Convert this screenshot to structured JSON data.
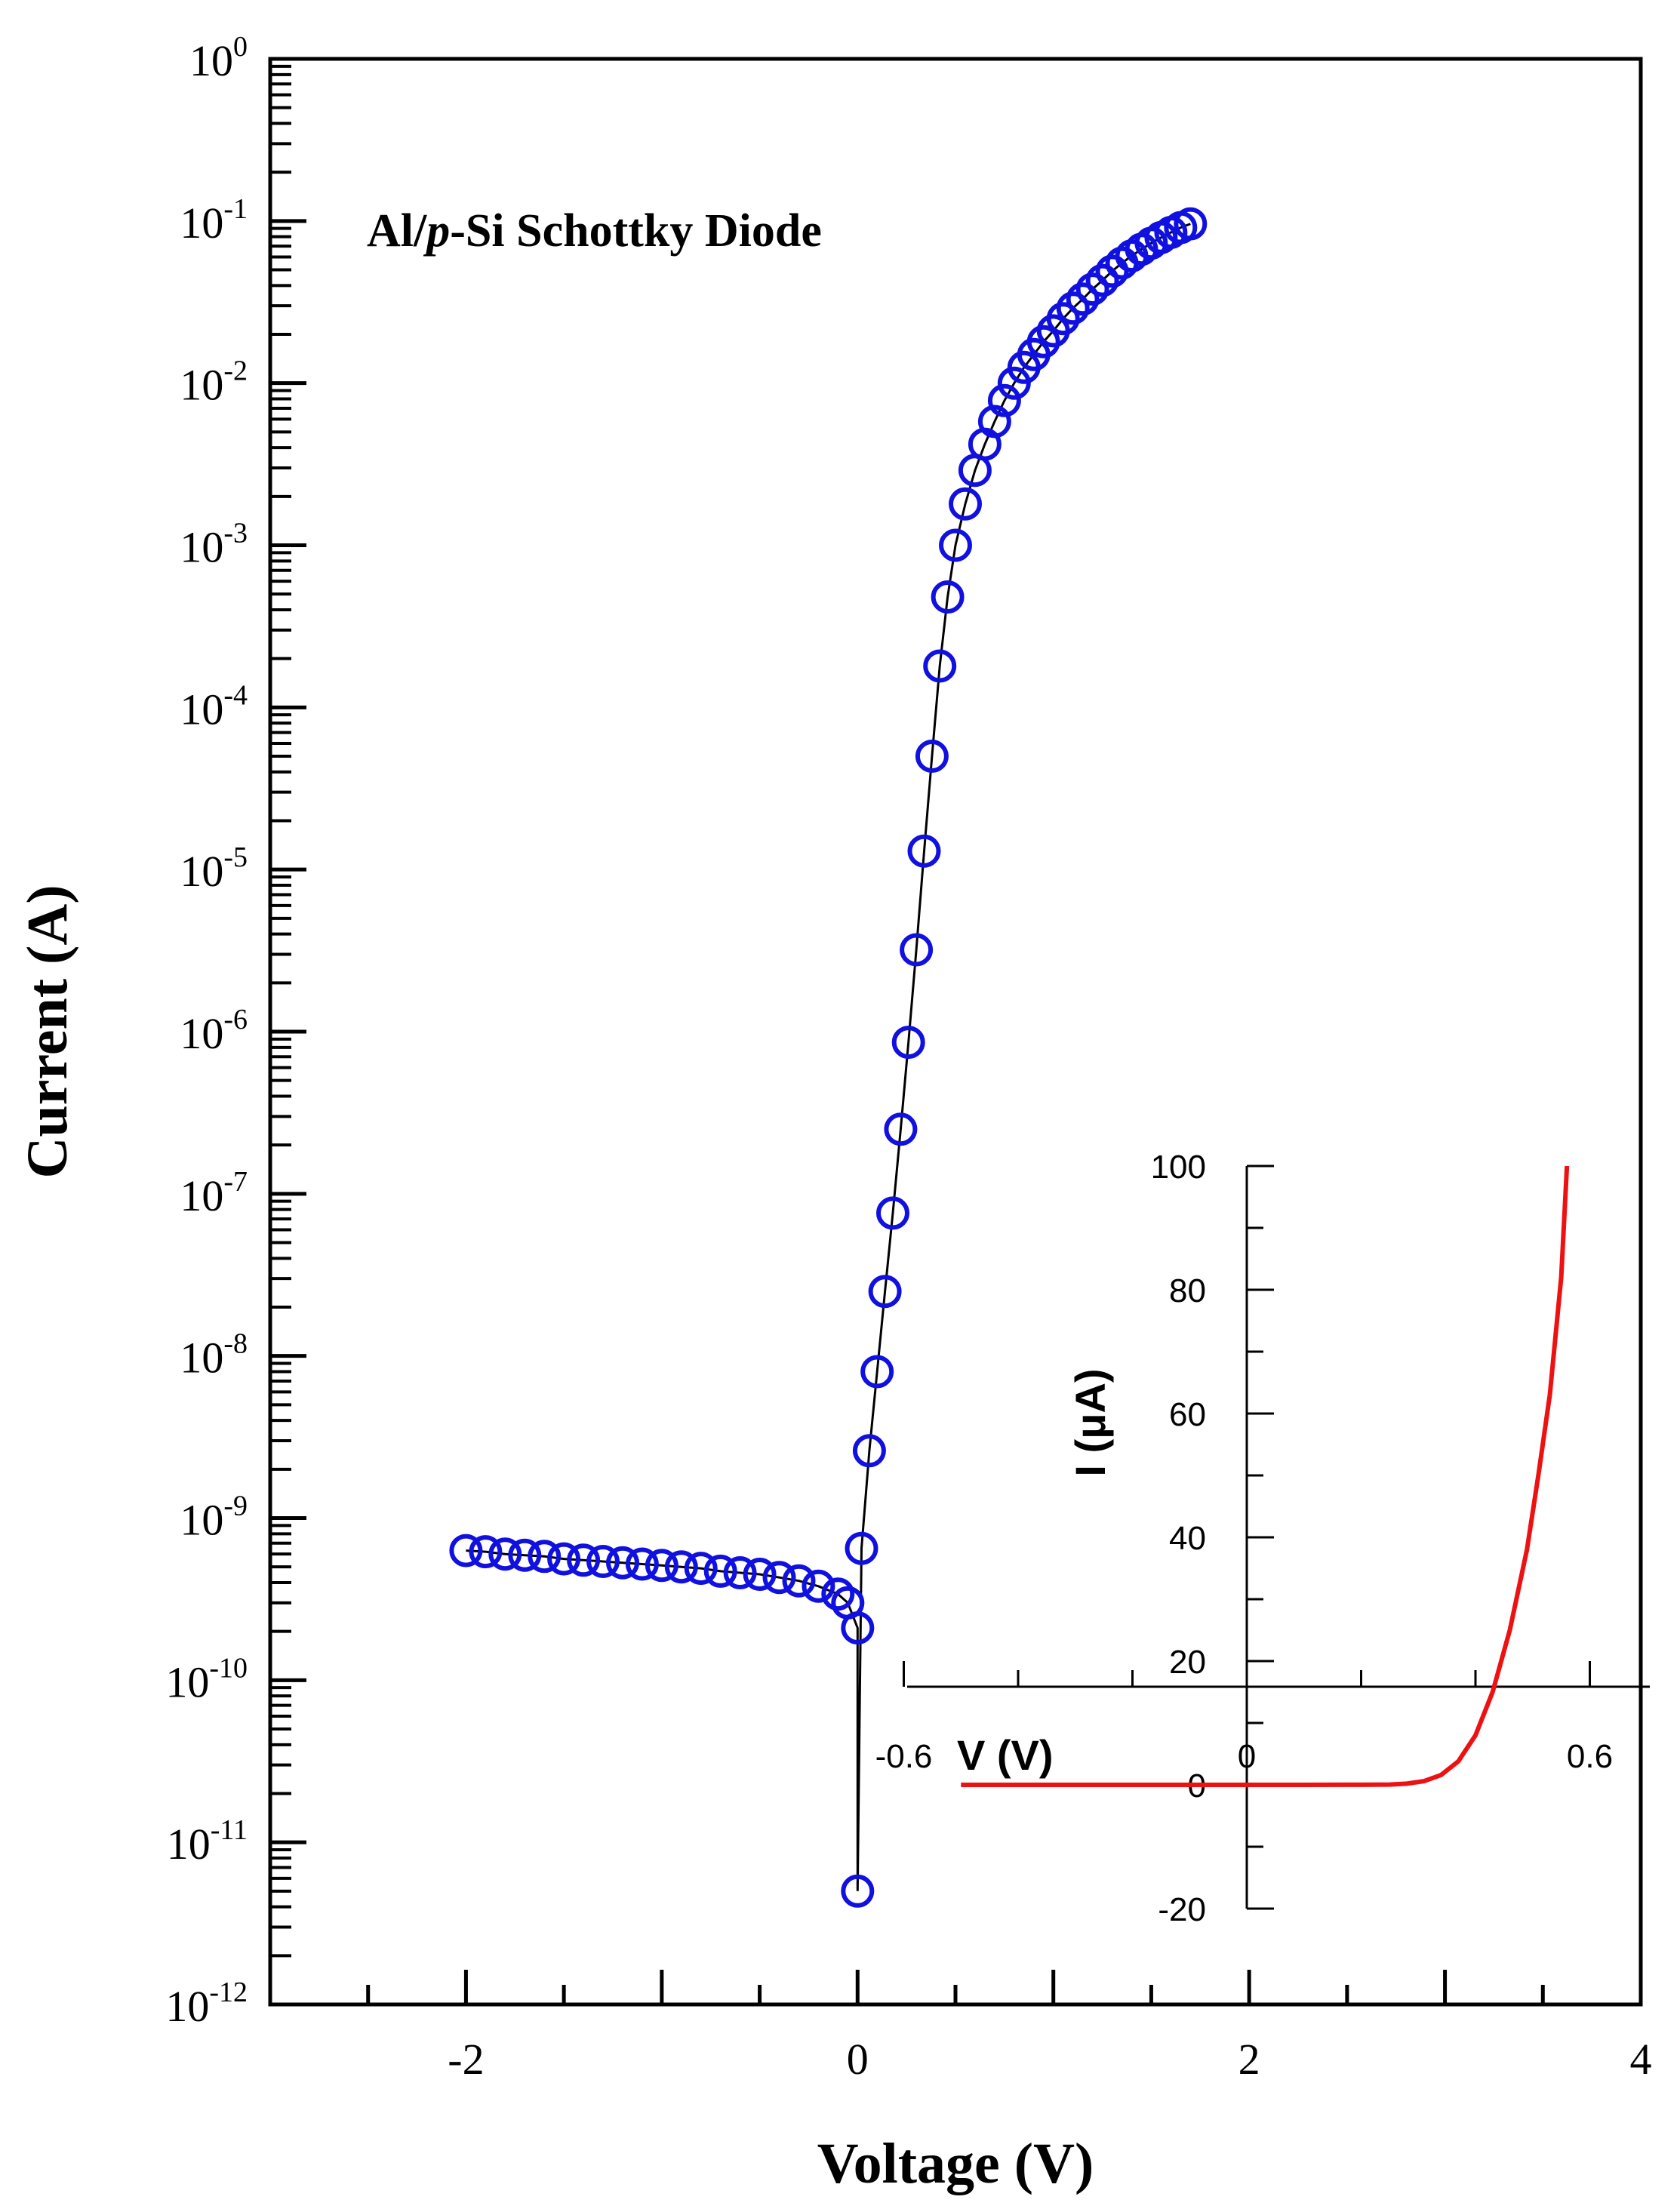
{
  "chart_data": [
    {
      "type": "scatter",
      "title": "",
      "xlabel": "Voltage (V)",
      "ylabel": "Current (A)",
      "xlim": [
        -3,
        4
      ],
      "ylim": [
        1e-12,
        1
      ],
      "y_scale": "log",
      "x_ticks": [
        -2,
        0,
        2,
        4
      ],
      "x_tick_labels": [
        "-2",
        "0",
        "2",
        "4"
      ],
      "y_ticks": [
        1e-12,
        1e-11,
        1e-10,
        1e-09,
        1e-08,
        1e-07,
        1e-06,
        1e-05,
        0.0001,
        0.001,
        0.01,
        0.1,
        1
      ],
      "y_tick_labels": [
        {
          "base": "10",
          "exp": "-12"
        },
        {
          "base": "10",
          "exp": "-11"
        },
        {
          "base": "10",
          "exp": "-10"
        },
        {
          "base": "10",
          "exp": "-9"
        },
        {
          "base": "10",
          "exp": "-8"
        },
        {
          "base": "10",
          "exp": "-7"
        },
        {
          "base": "10",
          "exp": "-6"
        },
        {
          "base": "10",
          "exp": "-5"
        },
        {
          "base": "10",
          "exp": "-4"
        },
        {
          "base": "10",
          "exp": "-3"
        },
        {
          "base": "10",
          "exp": "-2"
        },
        {
          "base": "10",
          "exp": "-1"
        },
        {
          "base": "10",
          "exp": "0"
        }
      ],
      "annotation": {
        "prefix": "Al/",
        "italic": "p",
        "suffix": "-Si Schottky Diode"
      },
      "grid": false,
      "marker": "open-circle",
      "series_color": "#1010e0",
      "line_color": "#000000",
      "series": [
        {
          "x": [
            -2.0,
            -1.9,
            -1.8,
            -1.7,
            -1.6,
            -1.5,
            -1.4,
            -1.3,
            -1.2,
            -1.1,
            -1.0,
            -0.9,
            -0.8,
            -0.7,
            -0.6,
            -0.5,
            -0.4,
            -0.3,
            -0.2,
            -0.1,
            -0.05,
            0.0,
            0.0,
            0.02,
            0.06,
            0.1,
            0.14,
            0.18,
            0.22,
            0.26,
            0.3,
            0.34,
            0.38,
            0.42,
            0.46,
            0.5,
            0.55,
            0.6,
            0.65,
            0.7,
            0.75,
            0.8,
            0.85,
            0.9,
            0.95,
            1.0,
            1.05,
            1.1,
            1.15,
            1.2,
            1.25,
            1.3,
            1.35,
            1.4,
            1.45,
            1.5,
            1.55,
            1.6,
            1.65,
            1.7
          ],
          "y": [
            6.3e-10,
            6.2e-10,
            6e-10,
            5.9e-10,
            5.8e-10,
            5.6e-10,
            5.5e-10,
            5.4e-10,
            5.3e-10,
            5.2e-10,
            5.1e-10,
            5e-10,
            4.9e-10,
            4.7e-10,
            4.6e-10,
            4.5e-10,
            4.3e-10,
            4.1e-10,
            3.8e-10,
            3.4e-10,
            3e-10,
            2.1e-10,
            5e-12,
            6.5e-10,
            2.6e-09,
            8e-09,
            2.5e-08,
            7.6e-08,
            2.5e-07,
            8.6e-07,
            3.2e-06,
            1.3e-05,
            5e-05,
            0.00018,
            0.00048,
            0.001,
            0.0018,
            0.0029,
            0.0042,
            0.0058,
            0.0078,
            0.01,
            0.0125,
            0.015,
            0.018,
            0.021,
            0.025,
            0.029,
            0.033,
            0.038,
            0.043,
            0.049,
            0.055,
            0.061,
            0.067,
            0.073,
            0.079,
            0.085,
            0.091,
            0.096
          ]
        }
      ]
    },
    {
      "type": "line",
      "title": "",
      "xlabel": "V (V)",
      "ylabel": "I (μA)",
      "xlim": [
        -0.6,
        0.6
      ],
      "ylim": [
        -20,
        100
      ],
      "x_ticks": [
        -0.6,
        0,
        0.6
      ],
      "x_tick_labels": [
        "-0.6",
        "0",
        "0.6"
      ],
      "y_ticks": [
        -20,
        0,
        20,
        40,
        60,
        80,
        100
      ],
      "y_tick_labels": [
        "-20",
        "0",
        "20",
        "40",
        "60",
        "80",
        "100"
      ],
      "grid": false,
      "series_color": "#ee1111",
      "series": [
        {
          "x": [
            -0.5,
            -0.3,
            -0.1,
            0.0,
            0.1,
            0.2,
            0.25,
            0.28,
            0.31,
            0.34,
            0.37,
            0.4,
            0.43,
            0.46,
            0.49,
            0.51,
            0.53,
            0.55,
            0.56
          ],
          "y": [
            0,
            0,
            0,
            0,
            0,
            0.01,
            0.05,
            0.2,
            0.6,
            1.6,
            3.8,
            8.0,
            15.0,
            25.0,
            38.0,
            50.0,
            63.0,
            82.0,
            100.0
          ]
        }
      ]
    }
  ]
}
